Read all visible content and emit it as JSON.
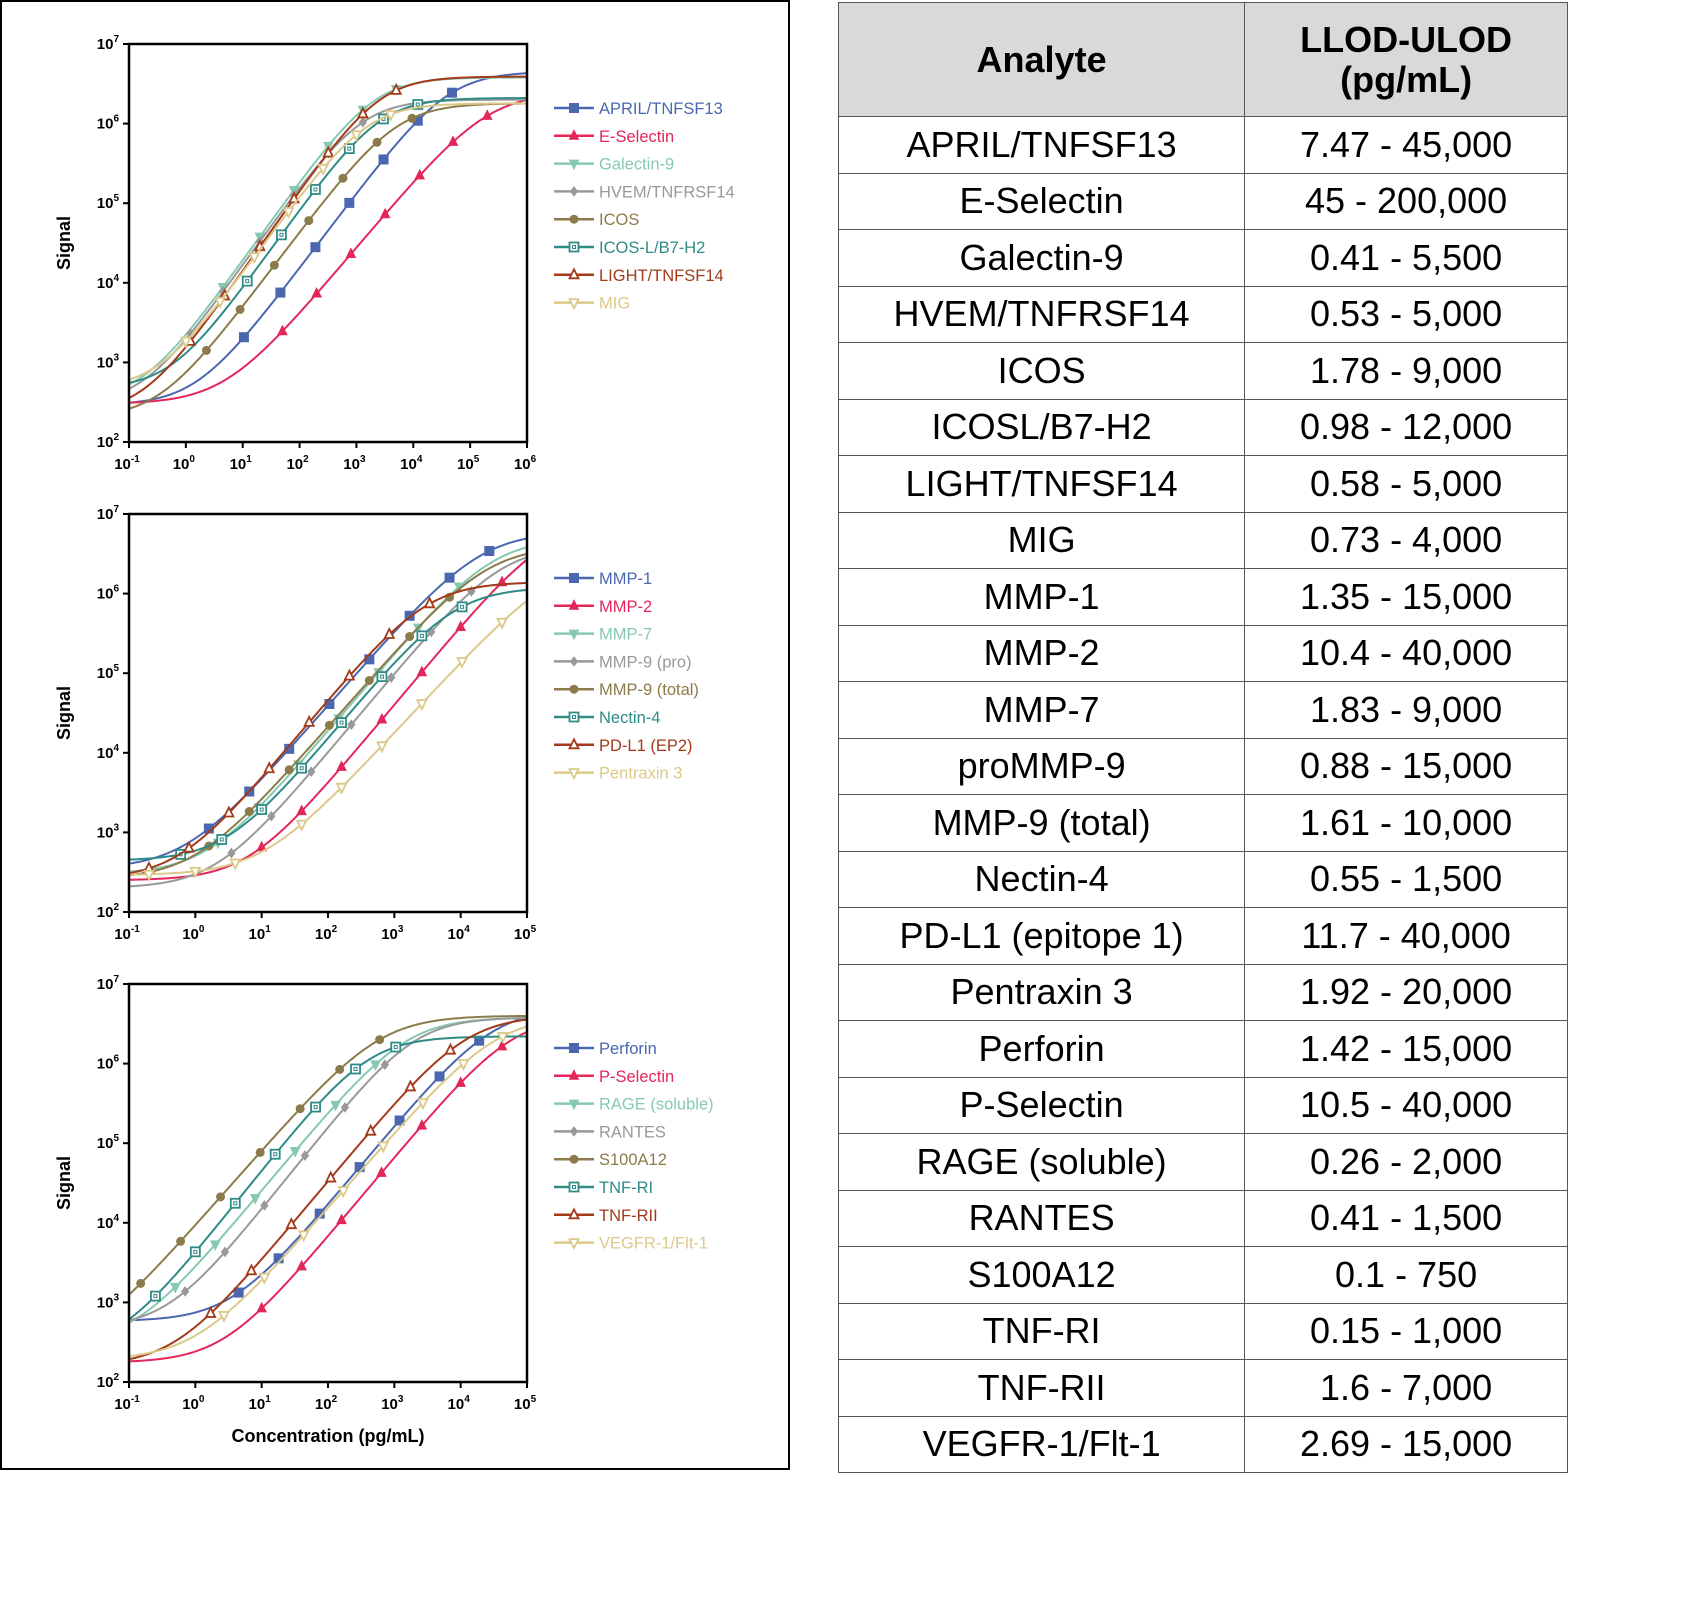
{
  "chart_data": [
    {
      "type": "line",
      "xscale": "log",
      "yscale": "log",
      "xlabel": "Concentration (pg/mL)",
      "ylabel": "Signal",
      "xlim": [
        0.1,
        1000000
      ],
      "ylim": [
        100,
        10000000
      ],
      "xticks": [
        {
          "base": "10",
          "exp": "-1"
        },
        {
          "base": "10",
          "exp": "0"
        },
        {
          "base": "10",
          "exp": "1"
        },
        {
          "base": "10",
          "exp": "2"
        },
        {
          "base": "10",
          "exp": "3"
        },
        {
          "base": "10",
          "exp": "4"
        },
        {
          "base": "10",
          "exp": "5"
        },
        {
          "base": "10",
          "exp": "6"
        }
      ],
      "yticks": [
        {
          "base": "10",
          "exp": "2"
        },
        {
          "base": "10",
          "exp": "3"
        },
        {
          "base": "10",
          "exp": "4"
        },
        {
          "base": "10",
          "exp": "5"
        },
        {
          "base": "10",
          "exp": "6"
        },
        {
          "base": "10",
          "exp": "7"
        }
      ],
      "legend": "right",
      "series": [
        {
          "name": "APRIL/TNFSF13",
          "color": "#4a67b0",
          "marker": "square",
          "bottom": 290,
          "top": 4500000,
          "ec50": 40000,
          "hill": 0.95,
          "points": [
            10.5,
            46,
            190,
            750,
            3000,
            12000,
            48000
          ]
        },
        {
          "name": "E-Selectin",
          "color": "#e3275a",
          "marker": "triangle-up",
          "bottom": 300,
          "top": 2500000,
          "ec50": 200000,
          "hill": 0.85,
          "points": [
            50,
            200,
            800,
            3200,
            13000,
            50000,
            200000
          ]
        },
        {
          "name": "Galectin-9",
          "color": "#86c9b0",
          "marker": "triangle-down",
          "bottom": 340,
          "top": 3800000,
          "ec50": 2000,
          "hill": 1.0,
          "points": [
            4.5,
            20,
            80,
            320,
            1300,
            5000
          ]
        },
        {
          "name": "HVEM/TNFRSF14",
          "color": "#999999",
          "marker": "diamond",
          "bottom": 300,
          "top": 2000000,
          "ec50": 1200,
          "hill": 1.0,
          "points": [
            1.2,
            4.5,
            20,
            80,
            320,
            1300
          ]
        },
        {
          "name": "ICOS",
          "color": "#8c7b4a",
          "marker": "circle",
          "bottom": 200,
          "top": 1800000,
          "ec50": 5000,
          "hill": 0.95,
          "points": [
            2.3,
            9,
            36,
            145,
            580,
            2300,
            9500
          ]
        },
        {
          "name": "ICOS-L/B7-H2",
          "color": "#2e8b86",
          "marker": "square-open",
          "bottom": 470,
          "top": 2100000,
          "ec50": 2500,
          "hill": 1.0,
          "points": [
            12,
            48,
            190,
            750,
            3000,
            12000
          ]
        },
        {
          "name": "LIGHT/TNFSF14",
          "color": "#a33a1a",
          "marker": "triangle-up-open",
          "bottom": 230,
          "top": 3900000,
          "ec50": 2500,
          "hill": 1.02,
          "points": [
            1.2,
            4.8,
            20,
            80,
            320,
            1300,
            5000
          ]
        },
        {
          "name": "MIG",
          "color": "#dcc98a",
          "marker": "triangle-down-open",
          "bottom": 460,
          "top": 1800000,
          "ec50": 1500,
          "hill": 0.98,
          "points": [
            1.0,
            4.0,
            16,
            64,
            260,
            1000,
            4000
          ]
        }
      ]
    },
    {
      "type": "line",
      "xscale": "log",
      "yscale": "log",
      "xlabel": "Concentration (pg/mL)",
      "ylabel": "Signal",
      "xlim": [
        0.1,
        100000
      ],
      "ylim": [
        100,
        10000000
      ],
      "xticks": [
        {
          "base": "10",
          "exp": "-1"
        },
        {
          "base": "10",
          "exp": "0"
        },
        {
          "base": "10",
          "exp": "1"
        },
        {
          "base": "10",
          "exp": "2"
        },
        {
          "base": "10",
          "exp": "3"
        },
        {
          "base": "10",
          "exp": "4"
        },
        {
          "base": "10",
          "exp": "5"
        }
      ],
      "yticks": [
        {
          "base": "10",
          "exp": "2"
        },
        {
          "base": "10",
          "exp": "3"
        },
        {
          "base": "10",
          "exp": "4"
        },
        {
          "base": "10",
          "exp": "5"
        },
        {
          "base": "10",
          "exp": "6"
        },
        {
          "base": "10",
          "exp": "7"
        }
      ],
      "legend": "right",
      "series": [
        {
          "name": "MMP-1",
          "color": "#4a67b0",
          "marker": "square",
          "bottom": 350,
          "top": 6000000,
          "ec50": 20000,
          "hill": 0.95,
          "points": [
            1.6,
            6.5,
            26,
            105,
            420,
            1700,
            6800,
            27000
          ]
        },
        {
          "name": "MMP-2",
          "color": "#e3275a",
          "marker": "triangle-up",
          "bottom": 250,
          "top": 8000000,
          "ec50": 200000,
          "hill": 1.0,
          "points": [
            10,
            40,
            160,
            650,
            2600,
            10000,
            42000
          ]
        },
        {
          "name": "MMP-7",
          "color": "#86c9b0",
          "marker": "triangle-down",
          "bottom": 300,
          "top": 5000000,
          "ec50": 30000,
          "hill": 0.98,
          "points": [
            2.2,
            9,
            36,
            145,
            580,
            2300,
            9500
          ]
        },
        {
          "name": "MMP-9 (pro)",
          "color": "#999999",
          "marker": "diamond",
          "bottom": 200,
          "top": 4000000,
          "ec50": 40000,
          "hill": 1.0,
          "points": [
            3.5,
            14,
            56,
            225,
            900,
            3600,
            14500
          ]
        },
        {
          "name": "MMP-9 (total)",
          "color": "#8c7b4a",
          "marker": "circle",
          "bottom": 260,
          "top": 4000000,
          "ec50": 25000,
          "hill": 0.95,
          "points": [
            1.6,
            6.5,
            26,
            105,
            420,
            1700,
            6800
          ]
        },
        {
          "name": "Nectin-4",
          "color": "#2e8b86",
          "marker": "square-open",
          "bottom": 440,
          "top": 1200000,
          "ec50": 8000,
          "hill": 1.0,
          "points": [
            0.6,
            2.5,
            10,
            40,
            160,
            650,
            2600,
            10500
          ]
        },
        {
          "name": "PD-L1 (EP2)",
          "color": "#a33a1a",
          "marker": "triangle-up-open",
          "bottom": 260,
          "top": 1400000,
          "ec50": 3000,
          "hill": 1.0,
          "points": [
            0.2,
            0.8,
            3.2,
            13,
            52,
            210,
            840,
            3400
          ]
        },
        {
          "name": "Pentraxin 3",
          "color": "#dcc98a",
          "marker": "triangle-down-open",
          "bottom": 290,
          "top": 3000000,
          "ec50": 300000,
          "hill": 0.9,
          "points": [
            0.2,
            1.0,
            4.0,
            40,
            160,
            650,
            2600,
            10500,
            42000
          ]
        }
      ]
    },
    {
      "type": "line",
      "xscale": "log",
      "yscale": "log",
      "xlabel": "Concentration (pg/mL)",
      "ylabel": "Signal",
      "xlim": [
        0.1,
        100000
      ],
      "ylim": [
        100,
        10000000
      ],
      "xticks": [
        {
          "base": "10",
          "exp": "-1"
        },
        {
          "base": "10",
          "exp": "0"
        },
        {
          "base": "10",
          "exp": "1"
        },
        {
          "base": "10",
          "exp": "2"
        },
        {
          "base": "10",
          "exp": "3"
        },
        {
          "base": "10",
          "exp": "4"
        },
        {
          "base": "10",
          "exp": "5"
        }
      ],
      "yticks": [
        {
          "base": "10",
          "exp": "2"
        },
        {
          "base": "10",
          "exp": "3"
        },
        {
          "base": "10",
          "exp": "4"
        },
        {
          "base": "10",
          "exp": "5"
        },
        {
          "base": "10",
          "exp": "6"
        },
        {
          "base": "10",
          "exp": "7"
        }
      ],
      "legend": "right",
      "series": [
        {
          "name": "Perforin",
          "color": "#4a67b0",
          "marker": "square",
          "bottom": 580,
          "top": 5000000,
          "ec50": 30000,
          "hill": 1.0,
          "points": [
            4.5,
            18,
            75,
            300,
            1200,
            4800,
            19000
          ]
        },
        {
          "name": "P-Selectin",
          "color": "#e3275a",
          "marker": "triangle-up",
          "bottom": 175,
          "top": 4000000,
          "ec50": 60000,
          "hill": 1.0,
          "points": [
            10,
            40,
            160,
            640,
            2600,
            10000,
            42000
          ]
        },
        {
          "name": "RAGE (soluble)",
          "color": "#86c9b0",
          "marker": "triangle-down",
          "bottom": 300,
          "top": 3800000,
          "ec50": 1500,
          "hill": 1.0,
          "points": [
            0.5,
            2.0,
            8,
            32,
            130,
            520
          ]
        },
        {
          "name": "RANTES",
          "color": "#999999",
          "marker": "diamond",
          "bottom": 480,
          "top": 3800000,
          "ec50": 2000,
          "hill": 1.05,
          "points": [
            0.7,
            2.8,
            11,
            45,
            180,
            720
          ]
        },
        {
          "name": "S100A12",
          "color": "#8c7b4a",
          "marker": "circle",
          "bottom": 220,
          "top": 4000000,
          "ec50": 600,
          "hill": 0.95,
          "points": [
            0.15,
            0.6,
            2.4,
            9.5,
            38,
            150,
            600
          ]
        },
        {
          "name": "TNF-RI",
          "color": "#2e8b86",
          "marker": "square-open",
          "bottom": 250,
          "top": 2200000,
          "ec50": 400,
          "hill": 1.05,
          "points": [
            0.25,
            1.0,
            4.0,
            16,
            65,
            260,
            1050
          ]
        },
        {
          "name": "TNF-RII",
          "color": "#a33a1a",
          "marker": "triangle-up-open",
          "bottom": 160,
          "top": 4000000,
          "ec50": 12000,
          "hill": 1.0,
          "points": [
            1.7,
            7,
            28,
            110,
            440,
            1750,
            7000
          ]
        },
        {
          "name": "VEGFR-1/Flt-1",
          "color": "#dcc98a",
          "marker": "triangle-down-open",
          "bottom": 190,
          "top": 4000000,
          "ec50": 35000,
          "hill": 0.95,
          "points": [
            2.7,
            11,
            43,
            170,
            680,
            2700,
            11000,
            43000
          ]
        }
      ]
    }
  ],
  "table": {
    "headers": [
      "Analyte",
      "LLOD-ULOD\n(pg/mL)"
    ],
    "header_line1": "LLOD-ULOD",
    "header_line2": "(pg/mL)",
    "rows": [
      [
        "APRIL/TNFSF13",
        "7.47 - 45,000"
      ],
      [
        "E-Selectin",
        "45 - 200,000"
      ],
      [
        "Galectin-9",
        "0.41 - 5,500"
      ],
      [
        "HVEM/TNFRSF14",
        "0.53 - 5,000"
      ],
      [
        "ICOS",
        "1.78 - 9,000"
      ],
      [
        "ICOSL/B7-H2",
        "0.98 - 12,000"
      ],
      [
        "LIGHT/TNFSF14",
        "0.58 - 5,000"
      ],
      [
        "MIG",
        "0.73 - 4,000"
      ],
      [
        "MMP-1",
        "1.35 - 15,000"
      ],
      [
        "MMP-2",
        "10.4 - 40,000"
      ],
      [
        "MMP-7",
        "1.83 - 9,000"
      ],
      [
        "proMMP-9",
        "0.88 - 15,000"
      ],
      [
        "MMP-9 (total)",
        "1.61 - 10,000"
      ],
      [
        "Nectin-4",
        "0.55 - 1,500"
      ],
      [
        "PD-L1 (epitope 1)",
        "11.7 - 40,000"
      ],
      [
        "Pentraxin 3",
        "1.92 - 20,000"
      ],
      [
        "Perforin",
        "1.42 - 15,000"
      ],
      [
        "P-Selectin",
        "10.5 - 40,000"
      ],
      [
        "RAGE (soluble)",
        "0.26 - 2,000"
      ],
      [
        "RANTES",
        "0.41 - 1,500"
      ],
      [
        "S100A12",
        "0.1 - 750"
      ],
      [
        "TNF-RI",
        "0.15 - 1,000"
      ],
      [
        "TNF-RII",
        "1.6 - 7,000"
      ],
      [
        "VEGFR-1/Flt-1",
        "2.69 - 15,000"
      ]
    ]
  }
}
